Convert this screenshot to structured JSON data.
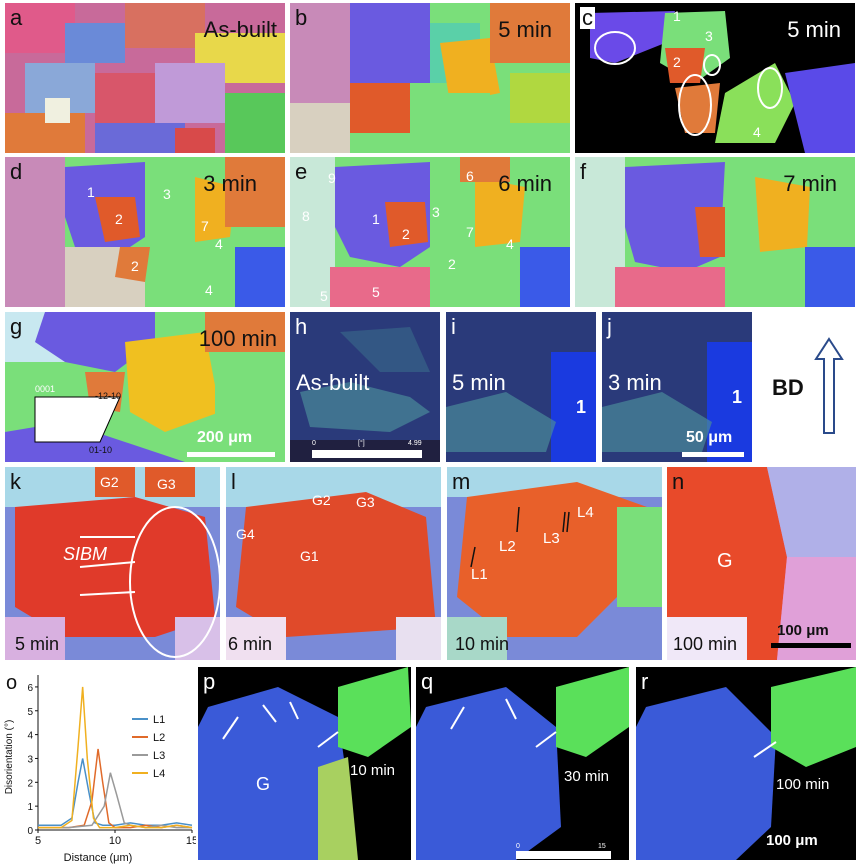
{
  "panels": {
    "a": {
      "label": "a",
      "time": "As-built"
    },
    "b": {
      "label": "b",
      "time": "5 min"
    },
    "c": {
      "label": "c",
      "time": "5 min",
      "grains": [
        "1",
        "2",
        "3",
        "4"
      ]
    },
    "d": {
      "label": "d",
      "time": "3 min",
      "grains": [
        "1",
        "2",
        "3",
        "7",
        "4",
        "2",
        "4"
      ]
    },
    "e": {
      "label": "e",
      "time": "6 min",
      "grains": [
        "9",
        "8",
        "1",
        "6",
        "2",
        "3",
        "7",
        "4",
        "2",
        "5",
        "5"
      ]
    },
    "f": {
      "label": "f",
      "time": "7 min"
    },
    "g": {
      "label": "g",
      "time": "100 min",
      "scale": "200 μm",
      "legend": {
        "top": "0001",
        "right": "-12-10",
        "bottom": "01-10"
      }
    },
    "h": {
      "label": "h",
      "time": "As-built",
      "cbar": {
        "min": "0",
        "unit": "[°]",
        "max": "4.99"
      }
    },
    "i": {
      "label": "i",
      "time": "5 min",
      "grain": "1"
    },
    "j": {
      "label": "j",
      "time": "3 min",
      "grain": "1",
      "scale": "50 μm"
    },
    "bd": {
      "label": "BD"
    },
    "k": {
      "label": "k",
      "time": "5 min",
      "grains": [
        "G2",
        "G3"
      ],
      "annotation": "SIBM"
    },
    "l": {
      "label": "l",
      "time": "6 min",
      "grains": [
        "G2",
        "G3",
        "G4",
        "G1"
      ]
    },
    "m": {
      "label": "m",
      "time": "10 min",
      "lines": [
        "L1",
        "L2",
        "L3",
        "L4"
      ]
    },
    "n": {
      "label": "n",
      "time": "100 min",
      "grain": "G",
      "scale": "100 μm"
    },
    "p": {
      "label": "p",
      "time": "10 min",
      "grain": "G"
    },
    "q": {
      "label": "q",
      "time": "30 min",
      "cbar": {
        "min": "0",
        "max": "15"
      }
    },
    "r": {
      "label": "r",
      "time": "100 min",
      "scale": "100 μm"
    }
  },
  "chart_data": {
    "type": "line",
    "panel_label": "o",
    "title": "",
    "xlabel": "Distance (μm)",
    "ylabel": "Disorientation (°)",
    "xlim": [
      5,
      15
    ],
    "ylim": [
      0,
      6.5
    ],
    "xticks": [
      "5",
      "10",
      "15"
    ],
    "yticks": [
      "0",
      "1",
      "2",
      "3",
      "4",
      "5",
      "6"
    ],
    "legend_position": "top-right",
    "series": [
      {
        "name": "L1",
        "color": "#4a90c8",
        "x": [
          5,
          6.5,
          7.2,
          7.6,
          7.9,
          8.3,
          8.7,
          9.2,
          10,
          11,
          12,
          13,
          14,
          15
        ],
        "y": [
          0.2,
          0.2,
          0.5,
          2.0,
          3.0,
          1.6,
          0.3,
          0.2,
          0.2,
          0.3,
          0.2,
          0.2,
          0.3,
          0.2
        ]
      },
      {
        "name": "L2",
        "color": "#e06a2a",
        "x": [
          5,
          7,
          8,
          8.5,
          8.9,
          9.2,
          9.6,
          10,
          11,
          12,
          13,
          14,
          15
        ],
        "y": [
          0.1,
          0.1,
          0.2,
          1.2,
          3.4,
          2.0,
          0.3,
          0.1,
          0.1,
          0.2,
          0.1,
          0.2,
          0.1
        ]
      },
      {
        "name": "L3",
        "color": "#9a9a9a",
        "x": [
          5,
          7,
          8.5,
          9.3,
          9.7,
          10.1,
          10.6,
          11,
          12,
          13,
          14,
          15
        ],
        "y": [
          0.1,
          0.1,
          0.2,
          1.0,
          2.4,
          1.5,
          0.3,
          0.2,
          0.1,
          0.2,
          0.1,
          0.1
        ]
      },
      {
        "name": "L4",
        "color": "#f0b020",
        "x": [
          5,
          6.5,
          7.2,
          7.6,
          7.9,
          8.2,
          8.6,
          9.0,
          10,
          11,
          12,
          13,
          14,
          15
        ],
        "y": [
          0.1,
          0.1,
          0.4,
          3.5,
          6.0,
          3.0,
          0.5,
          0.1,
          0.1,
          0.2,
          0.1,
          0.1,
          0.2,
          0.1
        ]
      }
    ]
  }
}
